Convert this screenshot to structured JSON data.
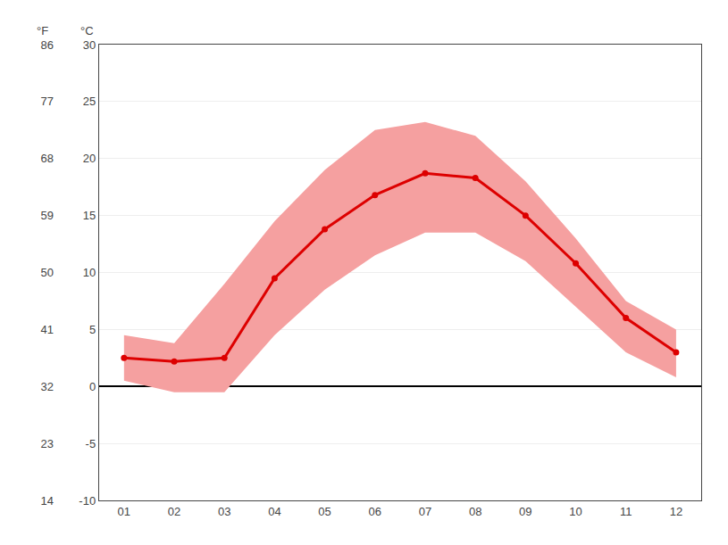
{
  "chart_data": {
    "type": "line",
    "x": [
      1,
      2,
      3,
      4,
      5,
      6,
      7,
      8,
      9,
      10,
      11,
      12
    ],
    "xlim": [
      0.5,
      12.5
    ],
    "xticks": [
      {
        "value": 1,
        "label": "01"
      },
      {
        "value": 2,
        "label": "02"
      },
      {
        "value": 3,
        "label": "03"
      },
      {
        "value": 4,
        "label": "04"
      },
      {
        "value": 5,
        "label": "05"
      },
      {
        "value": 6,
        "label": "06"
      },
      {
        "value": 7,
        "label": "07"
      },
      {
        "value": 8,
        "label": "08"
      },
      {
        "value": 9,
        "label": "09"
      },
      {
        "value": 10,
        "label": "10"
      },
      {
        "value": 11,
        "label": "11"
      },
      {
        "value": 12,
        "label": "12"
      }
    ],
    "series": [
      {
        "type": "band",
        "color": "#f5a0a0",
        "low": [
          0.5,
          -0.5,
          -0.5,
          4.5,
          8.5,
          11.5,
          13.5,
          13.5,
          11.0,
          7.0,
          3.0,
          0.8
        ],
        "high": [
          4.5,
          3.8,
          9.0,
          14.5,
          19.0,
          22.5,
          23.2,
          22.0,
          18.0,
          13.0,
          7.5,
          5.0
        ]
      },
      {
        "type": "line",
        "color": "#dd0000",
        "marker": "circle",
        "values": [
          2.5,
          2.2,
          2.5,
          9.5,
          13.8,
          16.8,
          18.7,
          18.3,
          15.0,
          10.8,
          6.0,
          3.0
        ]
      }
    ],
    "ylabel": "°C",
    "ylim": [
      -10,
      30
    ],
    "yticks": [
      -10,
      -5,
      0,
      5,
      10,
      15,
      20,
      25,
      30
    ],
    "y2label": "°F",
    "y2lim": [
      14,
      86
    ],
    "y2ticks": [
      14,
      23,
      32,
      41,
      50,
      59,
      68,
      77,
      86
    ],
    "grid": true
  }
}
